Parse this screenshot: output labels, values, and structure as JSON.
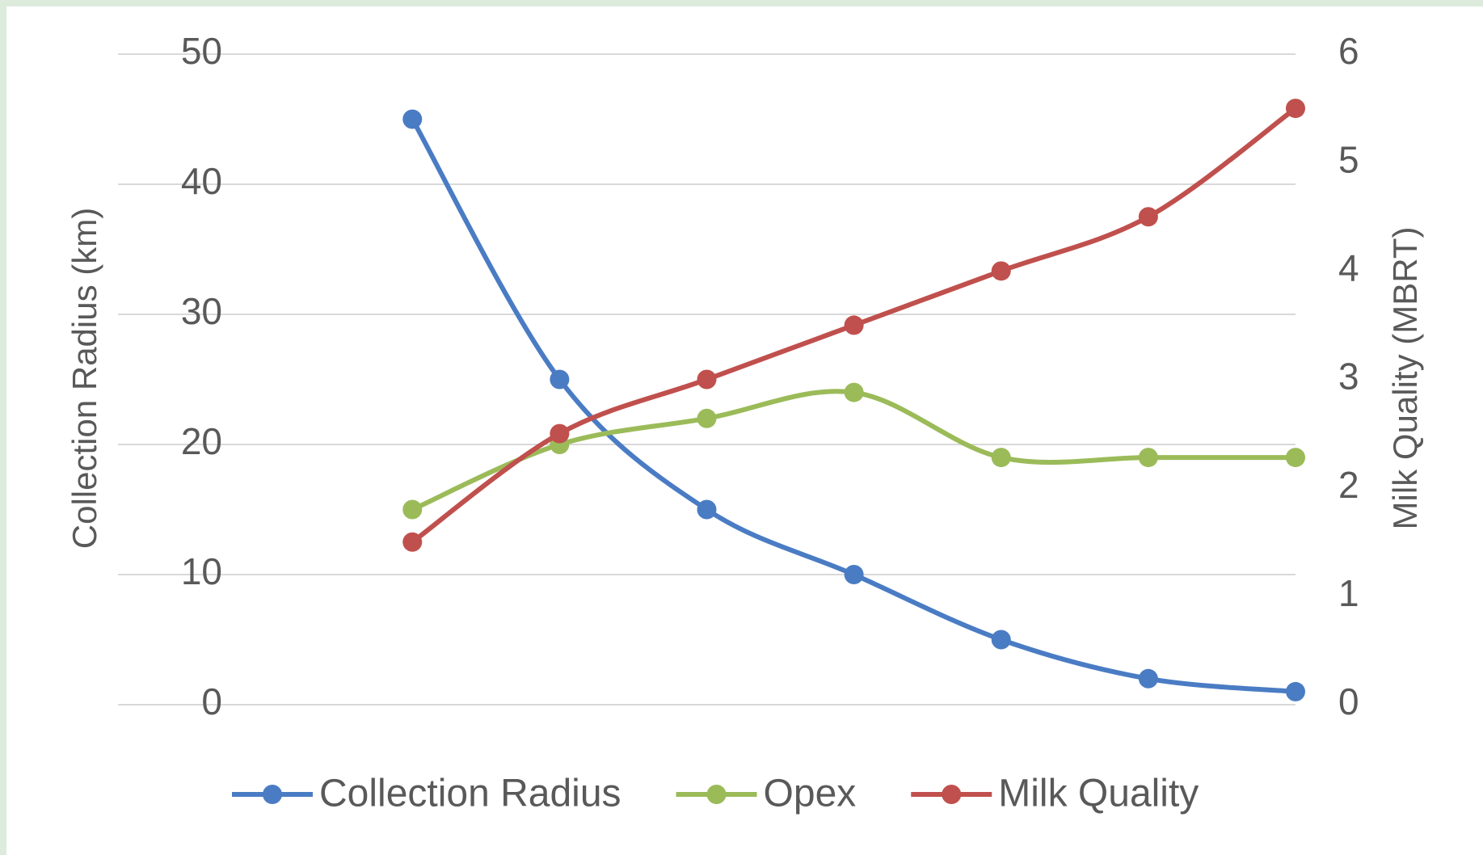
{
  "chart_data": {
    "type": "line",
    "categories": [
      null,
      null,
      null,
      null,
      null,
      null,
      null,
      null,
      null
    ],
    "series": [
      {
        "name": "Collection Radius",
        "color": "#4a7cc4",
        "values": [
          null,
          null,
          45,
          25,
          15,
          10,
          5,
          2,
          1
        ]
      },
      {
        "name": "Opex",
        "color": "#9bbb59",
        "values": [
          null,
          null,
          15,
          20,
          22,
          24,
          19,
          19,
          19
        ]
      },
      {
        "name": "Milk Quality",
        "color": "#c0504d",
        "axis": "y2",
        "values": [
          null,
          null,
          1.5,
          2.5,
          3,
          3.5,
          4,
          4.5,
          5.5
        ]
      }
    ],
    "ylabel": "Collection Radius (km)",
    "y2label": "Milk Quality (MBRT)",
    "ylim": [
      0,
      50
    ],
    "yticks": [
      0,
      10,
      20,
      30,
      40,
      50
    ],
    "y2lim": [
      0,
      6
    ],
    "y2ticks": [
      0,
      1,
      2,
      3,
      4,
      5,
      6
    ],
    "grid": true,
    "smooth": true,
    "legend": "bottom"
  }
}
